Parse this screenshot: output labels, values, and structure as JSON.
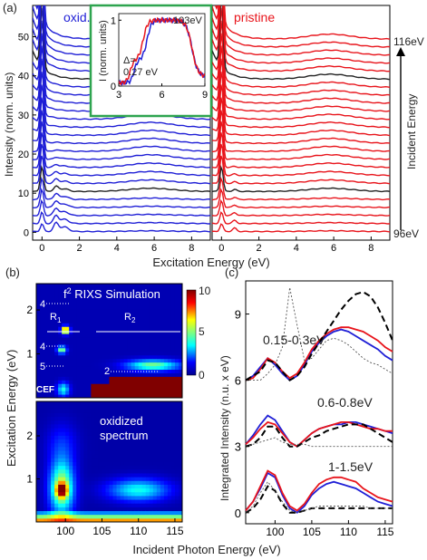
{
  "panel_labels": {
    "a": "(a)",
    "b": "(b)",
    "c": "(c)"
  },
  "colors": {
    "oxid": "#1f1fd6",
    "pristine": "#e8141b",
    "highlight": "#222222",
    "inset_frame": "#2ea44f",
    "axis": "#000000"
  },
  "chart_data": [
    {
      "id": "panel-a",
      "type": "line",
      "left": {
        "title": "oxid.",
        "xlabel": "",
        "ylabel": "Intensity (norm. units)",
        "xlim": [
          -0.5,
          9
        ],
        "ylim": [
          -2,
          58
        ],
        "xticks": [
          0,
          2,
          4,
          6,
          8
        ],
        "yticks": [
          0,
          10,
          20,
          30,
          40,
          50
        ],
        "n_curves": 25,
        "highlight_index": [
          5,
          19
        ]
      },
      "right": {
        "title": "pristine",
        "xlim": [
          -0.5,
          9
        ],
        "xticks": [
          0,
          2,
          4,
          6,
          8
        ],
        "n_curves": 25,
        "highlight_index": [
          5,
          19
        ]
      },
      "xlabel": "Excitation Energy (eV)",
      "energy_axis": {
        "label": "Incident Energy",
        "top": "116eV",
        "bottom": "96eV"
      },
      "inset": {
        "ylabel": "I (norm. units)",
        "xlim": [
          3,
          9
        ],
        "ylim": [
          0,
          1.1
        ],
        "xticks": [
          3,
          6,
          9
        ],
        "yticks": [
          0,
          1
        ],
        "label": "103eV",
        "delta_text_1": "Δ=",
        "delta_text_2": "0.27 eV"
      }
    },
    {
      "id": "panel-b",
      "type": "heatmap",
      "xlabel": "Incident Photon Energy (eV)",
      "ylabel": "Excitation Energy (eV)",
      "xlim": [
        96,
        116
      ],
      "xticks": [
        100,
        105,
        110,
        115
      ],
      "top": {
        "title": "f² RIXS Simulation",
        "title_main": "f",
        "title_sup": "2",
        "title_rest": " RIXS Simulation",
        "ylim": [
          0,
          2.6
        ],
        "yticks": [
          1,
          2
        ],
        "r1": "R₁",
        "r1_main": "R",
        "r1_sub": "1",
        "r2": "R₂",
        "r2_main": "R",
        "r2_sub": "2",
        "levels": [
          "4",
          "4",
          "5",
          "2"
        ],
        "cef": "CEF"
      },
      "bottom": {
        "title_line1": "oxidized",
        "title_line2": "spectrum",
        "ylim": [
          0,
          2.8
        ],
        "yticks": [
          1,
          2
        ]
      },
      "colorbar": {
        "ticks": [
          "10",
          "5",
          "0"
        ],
        "range": [
          0,
          10
        ]
      }
    },
    {
      "id": "panel-c",
      "type": "line",
      "xlabel": "Incident Photon Energy (eV)",
      "ylabel": "Integrated Intensity (n.u. x eV)",
      "xlim": [
        96,
        116
      ],
      "ylim": [
        -0.5,
        10.5
      ],
      "xticks": [
        100,
        105,
        110,
        115
      ],
      "yticks": [
        0,
        3,
        6,
        9
      ],
      "x": [
        96,
        97,
        98,
        99,
        100,
        101,
        102,
        103,
        104,
        105,
        106,
        107,
        108,
        109,
        110,
        111,
        112,
        113,
        114,
        115,
        116
      ],
      "groups": [
        {
          "label": "0.15-0.3eV",
          "series": [
            {
              "style": "blue",
              "values": [
                6.0,
                6.2,
                6.6,
                7.0,
                6.7,
                6.3,
                6.0,
                6.2,
                6.7,
                7.3,
                7.7,
                8.0,
                8.2,
                8.3,
                8.2,
                8.0,
                7.8,
                7.6,
                7.4,
                7.1,
                6.9
              ]
            },
            {
              "style": "red",
              "values": [
                6.0,
                6.1,
                6.5,
                7.0,
                6.8,
                6.4,
                6.1,
                6.3,
                6.8,
                7.4,
                7.8,
                8.1,
                8.3,
                8.4,
                8.4,
                8.3,
                8.2,
                8.0,
                7.8,
                7.5,
                7.3
              ]
            },
            {
              "style": "dashed",
              "values": [
                6.0,
                6.2,
                6.4,
                6.9,
                6.8,
                6.4,
                6.0,
                6.2,
                6.6,
                7.2,
                7.7,
                8.2,
                8.7,
                9.2,
                9.6,
                9.9,
                10.0,
                9.8,
                9.3,
                8.6,
                7.8
              ]
            },
            {
              "style": "dotted",
              "values": [
                6.0,
                6.0,
                6.0,
                6.3,
                6.7,
                7.5,
                10.2,
                8.5,
                6.9,
                7.0,
                7.4,
                7.8,
                7.9,
                7.8,
                7.6,
                7.3,
                7.0,
                6.8,
                6.7,
                6.5,
                6.3
              ]
            }
          ]
        },
        {
          "label": "0.6-0.8eV",
          "series": [
            {
              "style": "blue",
              "values": [
                3.1,
                3.5,
                4.0,
                4.4,
                4.2,
                3.7,
                3.2,
                3.0,
                3.3,
                3.6,
                3.8,
                3.9,
                4.0,
                4.0,
                4.1,
                4.1,
                4.0,
                3.9,
                3.8,
                3.7,
                3.6
              ]
            },
            {
              "style": "red",
              "values": [
                3.1,
                3.4,
                3.8,
                4.1,
                4.0,
                3.6,
                3.2,
                3.0,
                3.3,
                3.6,
                3.8,
                3.9,
                4.0,
                4.1,
                4.1,
                4.0,
                3.9,
                3.8,
                3.8,
                3.7,
                3.7
              ]
            },
            {
              "style": "dashed",
              "values": [
                3.0,
                3.1,
                3.4,
                3.9,
                3.9,
                3.4,
                3.0,
                3.0,
                3.2,
                3.4,
                3.5,
                3.7,
                3.8,
                3.9,
                4.0,
                4.0,
                4.0,
                3.8,
                3.6,
                3.4,
                3.2
              ]
            },
            {
              "style": "dotted",
              "values": [
                3.0,
                3.1,
                3.2,
                3.3,
                3.4,
                3.2,
                3.1,
                3.1,
                3.1,
                3.0,
                3.0,
                3.0,
                3.0,
                3.0,
                3.0,
                3.0,
                3.0,
                3.0,
                3.0,
                3.0,
                3.0
              ]
            }
          ]
        },
        {
          "label": "1-1.5eV",
          "series": [
            {
              "style": "blue",
              "values": [
                0.1,
                0.5,
                1.1,
                1.8,
                1.6,
                0.8,
                0.2,
                0.0,
                0.3,
                0.8,
                1.1,
                1.3,
                1.4,
                1.3,
                1.2,
                1.1,
                0.9,
                0.7,
                0.5,
                0.4,
                0.3
              ]
            },
            {
              "style": "red",
              "values": [
                0.1,
                0.5,
                1.2,
                1.9,
                1.7,
                0.9,
                0.3,
                0.1,
                0.4,
                0.9,
                1.3,
                1.5,
                1.6,
                1.6,
                1.5,
                1.4,
                1.1,
                0.9,
                0.7,
                0.6,
                0.5
              ]
            },
            {
              "style": "dashed",
              "values": [
                0.0,
                0.2,
                0.6,
                1.2,
                1.0,
                0.4,
                0.0,
                0.0,
                0.1,
                0.2,
                0.2,
                0.2,
                0.2,
                0.2,
                0.2,
                0.2,
                0.2,
                0.2,
                0.2,
                0.2,
                0.2
              ]
            },
            {
              "style": "dotted",
              "values": [
                0.0,
                0.3,
                0.9,
                1.4,
                1.0,
                0.5,
                0.1,
                0.0,
                0.1,
                0.2,
                0.3,
                0.3,
                0.3,
                0.3,
                0.3,
                0.3,
                0.3,
                0.2,
                0.2,
                0.2,
                0.2
              ]
            }
          ]
        }
      ]
    }
  ]
}
